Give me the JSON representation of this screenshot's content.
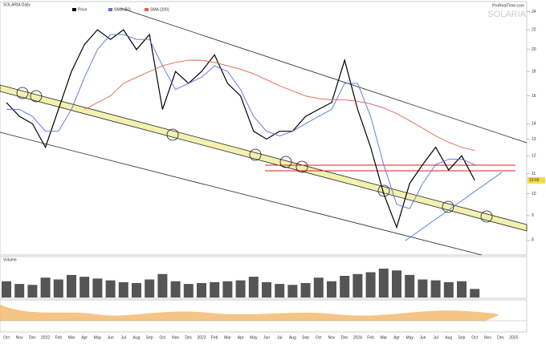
{
  "chart_data": {
    "type": "line",
    "title": "SOLARIA Daily",
    "watermark": "SOLARIA",
    "source": "ProRealTime.com",
    "log_scale": true,
    "categories": [
      "Oct",
      "Nov",
      "Dec",
      "2022",
      "Feb",
      "Mar",
      "Apr",
      "May",
      "Jun",
      "Jul",
      "Aug",
      "Sep",
      "Oct",
      "Nov",
      "Dec",
      "2023",
      "Feb",
      "Mar",
      "Apr",
      "May",
      "Jun",
      "Jul",
      "Aug",
      "Sep",
      "Oct",
      "Nov",
      "Dec",
      "2024",
      "Feb",
      "Mar",
      "Apr",
      "May",
      "Jun",
      "Jul",
      "Aug",
      "Sep",
      "Oct",
      "Nov",
      "Dec",
      "2025"
    ],
    "series": [
      {
        "name": "Price",
        "color": "#000000",
        "values": [
          15.5,
          14.5,
          14,
          12.5,
          15,
          18,
          20.5,
          22,
          21,
          22,
          20,
          21.5,
          15,
          18,
          17,
          18,
          19.5,
          17,
          16,
          13.5,
          13,
          13.5,
          13.5,
          14.5,
          15,
          15.5,
          19,
          15,
          12.5,
          10,
          8.5,
          10.5,
          11.5,
          12.5,
          11.2,
          12,
          10.66,
          null,
          null,
          null
        ]
      },
      {
        "name": "SMA (50)",
        "color": "#5a6fd8",
        "values": [
          15,
          15,
          14.5,
          13.5,
          13.5,
          15,
          17.5,
          20,
          21.5,
          21.5,
          21,
          21,
          18.5,
          16.5,
          17,
          17.5,
          18.5,
          18,
          16.5,
          14.5,
          13.5,
          13.2,
          13.5,
          14,
          14.5,
          15,
          17,
          17,
          14.5,
          11.5,
          9.5,
          9.3,
          10.5,
          11.5,
          11.8,
          11.8,
          11.5,
          null,
          null,
          null
        ]
      },
      {
        "name": "SMA (200)",
        "color": "#e06050",
        "values": [
          null,
          null,
          null,
          null,
          null,
          null,
          15,
          15.5,
          16,
          17,
          17.5,
          18,
          18.5,
          18.8,
          19,
          19,
          18.8,
          18.5,
          18.2,
          17.8,
          17.3,
          16.8,
          16.4,
          16,
          15.8,
          15.7,
          15.7,
          15.6,
          15.4,
          15.1,
          14.7,
          14.2,
          13.7,
          13.2,
          12.8,
          12.5,
          12.3,
          null,
          null,
          null
        ]
      }
    ],
    "ylim": [
      7.5,
      25
    ],
    "yticks": [
      8,
      9,
      10,
      11,
      12,
      13,
      14,
      16,
      18,
      20,
      22,
      24
    ],
    "volume": {
      "name": "Volume",
      "color": "#555555",
      "ylim": [
        0,
        4000000
      ],
      "values": [
        1800000,
        1500000,
        1400000,
        2200000,
        2000000,
        2500000,
        2300000,
        2100000,
        1900000,
        1700000,
        1600000,
        2000000,
        2600000,
        1800000,
        1500000,
        1600000,
        1700000,
        1800000,
        1900000,
        2300000,
        1700000,
        1500000,
        1400000,
        1600000,
        2200000,
        1800000,
        2400000,
        2600000,
        2800000,
        3200000,
        3000000,
        2500000,
        2000000,
        1900000,
        1700000,
        1800000,
        946536,
        null,
        null,
        null
      ]
    }
  }
}
